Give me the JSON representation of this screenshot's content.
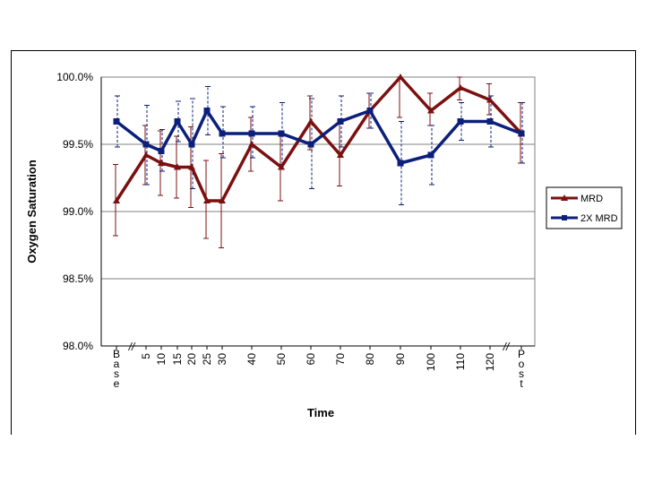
{
  "chart_data": {
    "type": "line",
    "xlabel": "Time",
    "ylabel": "Oxygen Saturation",
    "ylim": [
      98.0,
      100.0
    ],
    "yticks": [
      "98.0%",
      "98.5%",
      "99.0%",
      "99.5%",
      "100.0%"
    ],
    "grid": "horizontal",
    "legend": "right",
    "categories": [
      "Base",
      "5",
      "10",
      "15",
      "20",
      "25",
      "30",
      "40",
      "50",
      "60",
      "70",
      "80",
      "90",
      "100",
      "110",
      "120",
      "Post"
    ],
    "axis_break_marks": [
      "//",
      "//"
    ],
    "series": [
      {
        "name": "MRD",
        "color": "#7b1010",
        "marker": "triangle",
        "values": [
          99.08,
          99.42,
          99.36,
          99.33,
          99.33,
          99.08,
          99.08,
          99.5,
          99.33,
          99.67,
          99.42,
          99.75,
          100.0,
          99.75,
          99.92,
          99.83,
          99.58
        ],
        "error_low": [
          98.82,
          99.2,
          99.12,
          99.1,
          99.03,
          98.8,
          98.73,
          99.3,
          99.08,
          99.46,
          99.19,
          99.62,
          99.7,
          99.64,
          99.83,
          99.72,
          99.36
        ],
        "error_high": [
          99.35,
          99.64,
          99.6,
          99.56,
          99.63,
          99.38,
          99.43,
          99.7,
          99.58,
          99.86,
          99.65,
          99.88,
          100.0,
          99.88,
          100.0,
          99.95,
          99.81
        ]
      },
      {
        "name": "2X MRD",
        "color": "#0c1f7a",
        "marker": "square",
        "values": [
          99.67,
          99.5,
          99.45,
          99.67,
          99.5,
          99.75,
          99.58,
          99.58,
          99.58,
          99.5,
          99.67,
          99.75,
          99.36,
          99.42,
          99.67,
          99.67,
          99.58
        ],
        "error_low": [
          99.48,
          99.2,
          99.3,
          99.52,
          99.17,
          99.57,
          99.4,
          99.4,
          99.35,
          99.17,
          99.48,
          99.62,
          99.05,
          99.2,
          99.53,
          99.48,
          99.36
        ],
        "error_high": [
          99.86,
          99.79,
          99.61,
          99.82,
          99.84,
          99.93,
          99.78,
          99.78,
          99.81,
          99.84,
          99.86,
          99.88,
          99.67,
          99.64,
          99.81,
          99.86,
          99.81
        ]
      }
    ]
  }
}
